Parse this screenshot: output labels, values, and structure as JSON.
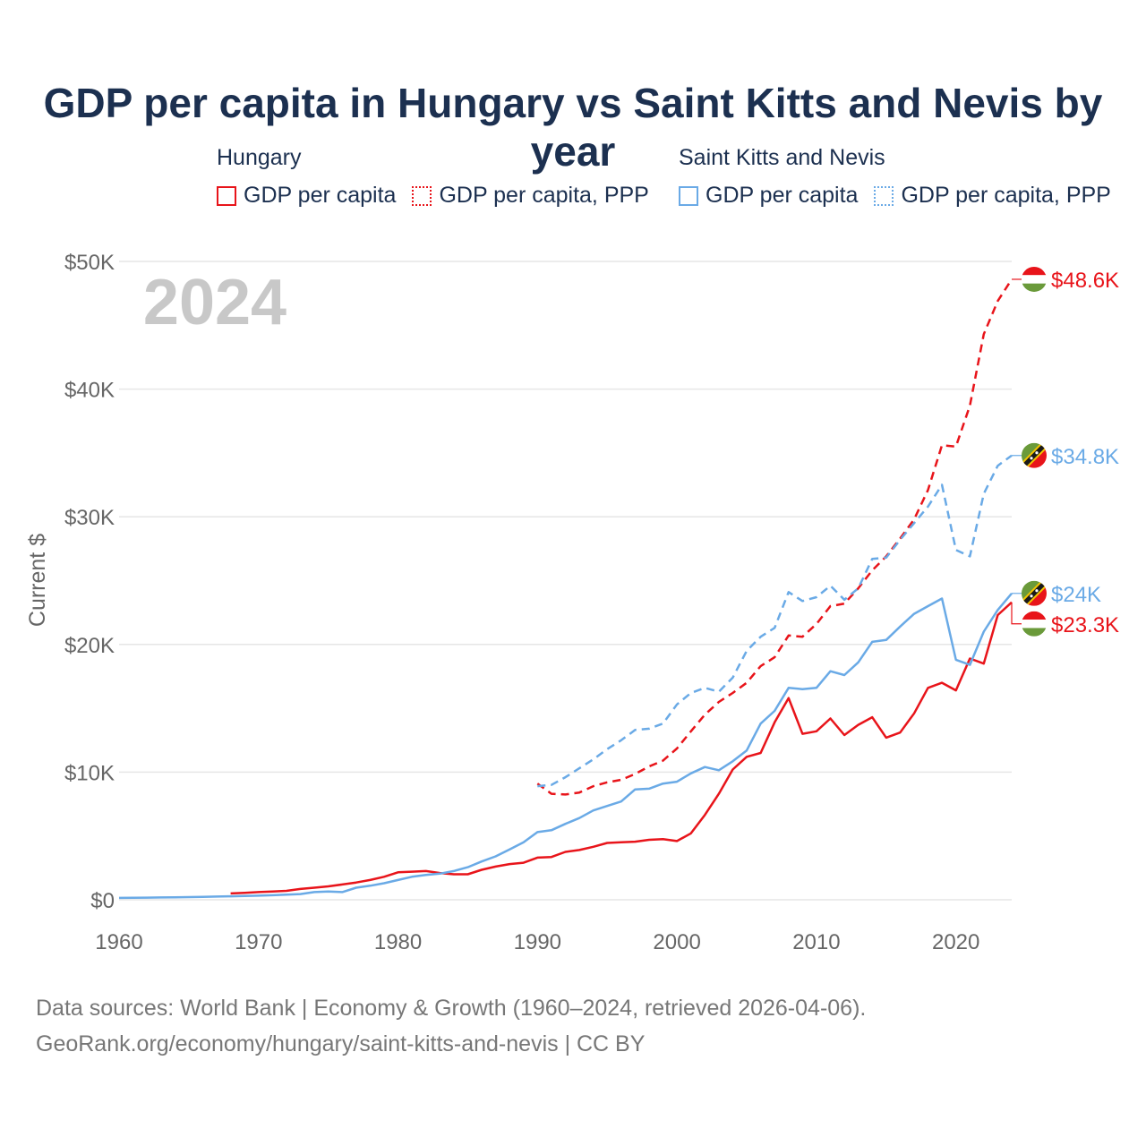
{
  "title": "GDP per capita in Hungary vs Saint Kitts and Nevis by year",
  "legend": {
    "groups": [
      {
        "name": "Hungary",
        "items": [
          "GDP per capita",
          "GDP per capita, PPP"
        ]
      },
      {
        "name": "Saint Kitts and Nevis",
        "items": [
          "GDP per capita",
          "GDP per capita, PPP"
        ]
      }
    ]
  },
  "colors": {
    "hungary": "#e8141a",
    "skn": "#6aaae6",
    "grid": "#e6e6e6",
    "axis_text": "#666666",
    "year_watermark": "#c8c8c8"
  },
  "chart_data": {
    "type": "line",
    "title": "GDP per capita in Hungary vs Saint Kitts and Nevis by year",
    "year_label": "2024",
    "ylabel": "Current $",
    "xlabel": "",
    "xlim": [
      1960,
      2024
    ],
    "ylim": [
      0,
      50000
    ],
    "x_ticks": [
      "1960",
      "1970",
      "1980",
      "1990",
      "2000",
      "2010",
      "2020"
    ],
    "x_tick_values": [
      1960,
      1970,
      1980,
      1990,
      2000,
      2010,
      2020
    ],
    "y_ticks": [
      "$0",
      "$10K",
      "$20K",
      "$30K",
      "$40K",
      "$50K"
    ],
    "y_tick_values": [
      0,
      10000,
      20000,
      30000,
      40000,
      50000
    ],
    "grid": true,
    "series": [
      {
        "name": "Hungary GDP per capita",
        "country": "hungary",
        "style": "solid",
        "end_label": "$23.3K",
        "x": [
          1968,
          1969,
          1970,
          1971,
          1972,
          1973,
          1974,
          1975,
          1976,
          1977,
          1978,
          1979,
          1980,
          1981,
          1982,
          1983,
          1984,
          1985,
          1986,
          1987,
          1988,
          1989,
          1990,
          1991,
          1992,
          1993,
          1994,
          1995,
          1996,
          1997,
          1998,
          1999,
          2000,
          2001,
          2002,
          2003,
          2004,
          2005,
          2006,
          2007,
          2008,
          2009,
          2010,
          2011,
          2012,
          2013,
          2014,
          2015,
          2016,
          2017,
          2018,
          2019,
          2020,
          2021,
          2022,
          2023,
          2024
        ],
        "values": [
          500,
          550,
          600,
          650,
          700,
          850,
          950,
          1050,
          1200,
          1350,
          1550,
          1800,
          2150,
          2200,
          2250,
          2100,
          2000,
          2000,
          2350,
          2600,
          2800,
          2900,
          3300,
          3350,
          3750,
          3900,
          4150,
          4450,
          4500,
          4550,
          4700,
          4750,
          4600,
          5200,
          6650,
          8300,
          10200,
          11200,
          11500,
          13900,
          15800,
          13000,
          13200,
          14200,
          12900,
          13700,
          14300,
          12700,
          13100,
          14600,
          16600,
          17000,
          16400,
          18900,
          18500,
          22300,
          23300
        ]
      },
      {
        "name": "Hungary GDP per capita, PPP",
        "country": "hungary",
        "style": "dashed",
        "end_label": "$48.6K",
        "x": [
          1990,
          1991,
          1992,
          1993,
          1994,
          1995,
          1996,
          1997,
          1998,
          1999,
          2000,
          2001,
          2002,
          2003,
          2004,
          2005,
          2006,
          2007,
          2008,
          2009,
          2010,
          2011,
          2012,
          2013,
          2014,
          2015,
          2016,
          2017,
          2018,
          2019,
          2020,
          2021,
          2022,
          2023,
          2024
        ],
        "values": [
          9100,
          8300,
          8250,
          8400,
          8900,
          9200,
          9400,
          9850,
          10450,
          10900,
          11850,
          13200,
          14500,
          15500,
          16200,
          17000,
          18300,
          19000,
          20700,
          20600,
          21600,
          23000,
          23200,
          24400,
          25800,
          26900,
          28300,
          29800,
          32100,
          35600,
          35500,
          38700,
          44300,
          46900,
          48600
        ]
      },
      {
        "name": "Saint Kitts and Nevis GDP per capita",
        "country": "skn",
        "style": "solid",
        "end_label": "$24K",
        "x": [
          1960,
          1961,
          1962,
          1963,
          1964,
          1965,
          1966,
          1967,
          1968,
          1969,
          1970,
          1971,
          1972,
          1973,
          1974,
          1975,
          1976,
          1977,
          1978,
          1979,
          1980,
          1981,
          1982,
          1983,
          1984,
          1985,
          1986,
          1987,
          1988,
          1989,
          1990,
          1991,
          1992,
          1993,
          1994,
          1995,
          1996,
          1997,
          1998,
          1999,
          2000,
          2001,
          2002,
          2003,
          2004,
          2005,
          2006,
          2007,
          2008,
          2009,
          2010,
          2011,
          2012,
          2013,
          2014,
          2015,
          2016,
          2017,
          2018,
          2019,
          2020,
          2021,
          2022,
          2023,
          2024
        ],
        "values": [
          150,
          160,
          170,
          180,
          195,
          210,
          230,
          250,
          270,
          300,
          320,
          360,
          400,
          450,
          600,
          650,
          600,
          950,
          1100,
          1300,
          1550,
          1800,
          1950,
          2050,
          2250,
          2550,
          3000,
          3400,
          3950,
          4500,
          5300,
          5450,
          5950,
          6400,
          7000,
          7350,
          7700,
          8650,
          8700,
          9100,
          9250,
          9900,
          10400,
          10150,
          10850,
          11700,
          13800,
          14800,
          16600,
          16500,
          16600,
          17900,
          17600,
          18600,
          20200,
          20350,
          21400,
          22400,
          23000,
          23600,
          18800,
          18400,
          21000,
          22700,
          24000
        ]
      },
      {
        "name": "Saint Kitts and Nevis GDP per capita, PPP",
        "country": "skn",
        "style": "dashed",
        "end_label": "$34.8K",
        "x": [
          1990,
          1991,
          1992,
          1993,
          1994,
          1995,
          1996,
          1997,
          1998,
          1999,
          2000,
          2001,
          2002,
          2003,
          2004,
          2005,
          2006,
          2007,
          2008,
          2009,
          2010,
          2011,
          2012,
          2013,
          2014,
          2015,
          2016,
          2017,
          2018,
          2019,
          2020,
          2021,
          2022,
          2023,
          2024
        ],
        "values": [
          8900,
          9000,
          9600,
          10300,
          11000,
          11800,
          12500,
          13300,
          13400,
          13800,
          15300,
          16200,
          16600,
          16300,
          17400,
          19500,
          20600,
          21300,
          24100,
          23400,
          23700,
          24600,
          23500,
          24400,
          26700,
          26800,
          28200,
          29500,
          30800,
          32500,
          27400,
          26900,
          31800,
          34000,
          34800
        ]
      }
    ]
  },
  "footer": {
    "line1": "Data sources: World Bank | Economy & Growth (1960–2024, retrieved 2026-04-06).",
    "line2": "GeoRank.org/economy/hungary/saint-kitts-and-nevis | CC BY"
  }
}
